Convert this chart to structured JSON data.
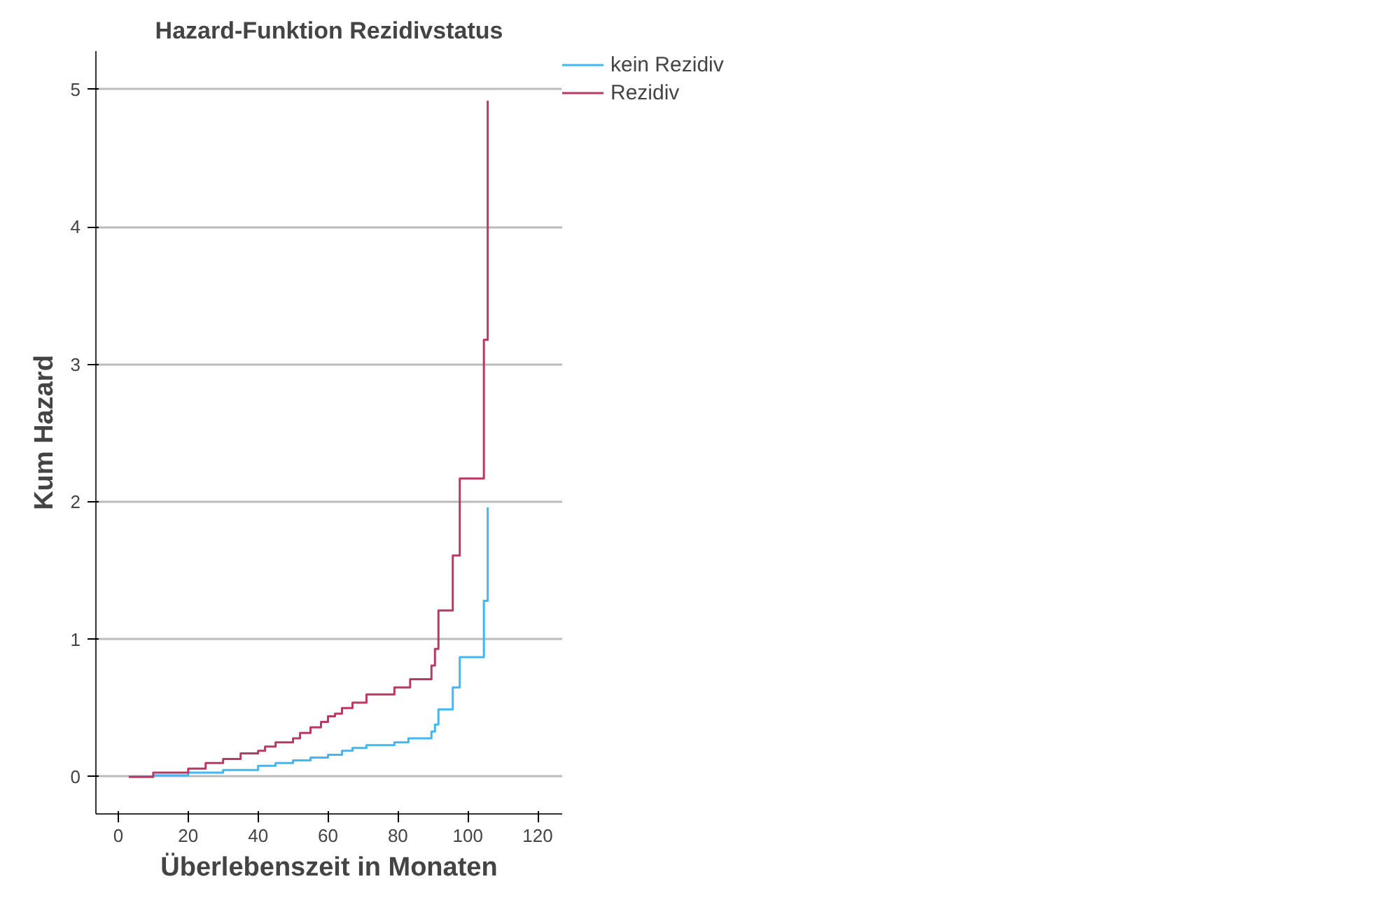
{
  "chart_data": {
    "type": "step",
    "title": "Hazard-Funktion Rezidivstatus",
    "xlabel": "Überlebenszeit in Monaten",
    "ylabel": "Kum Hazard",
    "series": [
      {
        "name": "kein Rezidiv",
        "color": "#3fb8f7",
        "x": [
          3,
          10,
          20,
          30,
          40,
          45,
          50,
          55,
          60,
          64,
          67,
          71,
          79,
          83,
          89.6,
          90.6,
          91.6,
          95.7,
          97.7,
          104.6,
          105.7
        ],
        "values": [
          0,
          0.01,
          0.03,
          0.05,
          0.08,
          0.1,
          0.12,
          0.14,
          0.16,
          0.19,
          0.21,
          0.23,
          0.25,
          0.28,
          0.33,
          0.38,
          0.49,
          0.65,
          0.87,
          1.28,
          1.96
        ]
      },
      {
        "name": "Rezidiv",
        "color": "#b83a64",
        "x": [
          3,
          10,
          20,
          25,
          30,
          35,
          40,
          42,
          45,
          50,
          52,
          55,
          58,
          60,
          62,
          64,
          67,
          71,
          79,
          83.5,
          89.6,
          90.6,
          91.6,
          95.7,
          97.7,
          104.6,
          105.7
        ],
        "values": [
          0,
          0.03,
          0.06,
          0.1,
          0.13,
          0.17,
          0.19,
          0.22,
          0.25,
          0.28,
          0.32,
          0.36,
          0.4,
          0.44,
          0.46,
          0.5,
          0.54,
          0.6,
          0.65,
          0.71,
          0.81,
          0.93,
          1.21,
          1.61,
          2.17,
          3.18,
          4.92
        ]
      }
    ],
    "xlim": [
      -6.4,
      127
    ],
    "xticks": [
      0,
      20,
      40,
      60,
      80,
      100,
      120
    ],
    "ylim": [
      -0.27,
      5.28
    ],
    "yticks": [
      0,
      1,
      2,
      3,
      4,
      5
    ],
    "grid": "y",
    "legend": "top right"
  }
}
